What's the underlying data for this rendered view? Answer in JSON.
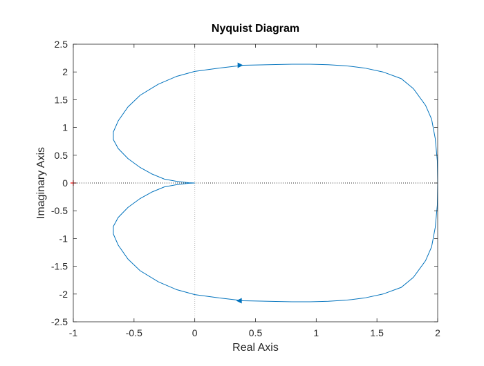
{
  "chart_data": {
    "type": "line",
    "title": "Nyquist Diagram",
    "xlabel": "Real Axis",
    "ylabel": "Imaginary Axis",
    "xlim": [
      -1,
      2
    ],
    "ylim": [
      -2.5,
      2.5
    ],
    "xticks": [
      -1,
      -0.5,
      0,
      0.5,
      1,
      1.5,
      2
    ],
    "xtick_labels": [
      "-1",
      "-0.5",
      "0",
      "0.5",
      "1",
      "1.5",
      "2"
    ],
    "yticks": [
      2.5,
      2,
      1.5,
      1,
      0.5,
      0,
      -0.5,
      -1,
      -1.5,
      -2,
      -2.5
    ],
    "ytick_labels": [
      "2.5",
      "2",
      "1.5",
      "1",
      "0.5",
      "0",
      "-0.5",
      "-1",
      "-1.5",
      "-2",
      "-2.5"
    ],
    "grid": false,
    "reference_lines": {
      "real_axis_y": 0,
      "imag_axis_x": 0
    },
    "critical_point": {
      "x": -1,
      "y": 0,
      "color": "#ff0000"
    },
    "series": [
      {
        "color": "#0072bd",
        "x": [
          2.0,
          1.997,
          1.98,
          1.95,
          1.9,
          1.8,
          1.7,
          1.55,
          1.4,
          1.25,
          1.1,
          0.95,
          0.8,
          0.6,
          0.4,
          0.2,
          0.0,
          -0.15,
          -0.3,
          -0.45,
          -0.55,
          -0.63,
          -0.67,
          -0.67,
          -0.63,
          -0.55,
          -0.45,
          -0.35,
          -0.25,
          -0.15,
          -0.05,
          0.0
        ],
        "y": [
          0.0,
          0.4,
          0.8,
          1.15,
          1.4,
          1.7,
          1.88,
          2.0,
          2.07,
          2.11,
          2.13,
          2.14,
          2.14,
          2.13,
          2.12,
          2.07,
          2.01,
          1.92,
          1.78,
          1.58,
          1.37,
          1.12,
          0.92,
          0.78,
          0.62,
          0.44,
          0.28,
          0.16,
          0.07,
          0.03,
          0.005,
          0.0
        ],
        "mirror_negative_frequencies": true
      }
    ],
    "direction_arrows": [
      {
        "x": 0.37,
        "y": 2.12,
        "dir": "right"
      },
      {
        "x": 0.37,
        "y": -2.12,
        "dir": "left"
      }
    ],
    "colors": {
      "line": "#0072bd",
      "axes": "#262626",
      "box": "#262626",
      "reference": "#262626",
      "critical": "#ff0000"
    }
  }
}
